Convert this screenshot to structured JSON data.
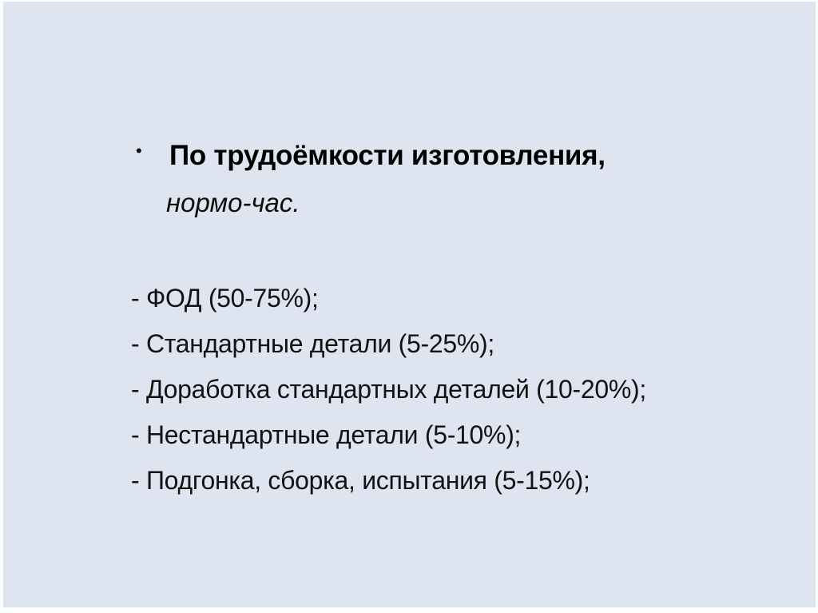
{
  "slide": {
    "background_color": "#dfe4f1",
    "text_color": "#121212",
    "heading": {
      "bullet_glyph": "•",
      "title": "По трудоёмкости изготовления,",
      "subtitle": "нормо-час."
    },
    "list": {
      "items": [
        "- ФОД (50-75%);",
        "- Стандартные детали (5-25%);",
        "- Доработка стандартных деталей (10-20%);",
        "- Нестандартные детали (5-10%);",
        "- Подгонка, сборка, испытания (5-15%);"
      ]
    }
  }
}
